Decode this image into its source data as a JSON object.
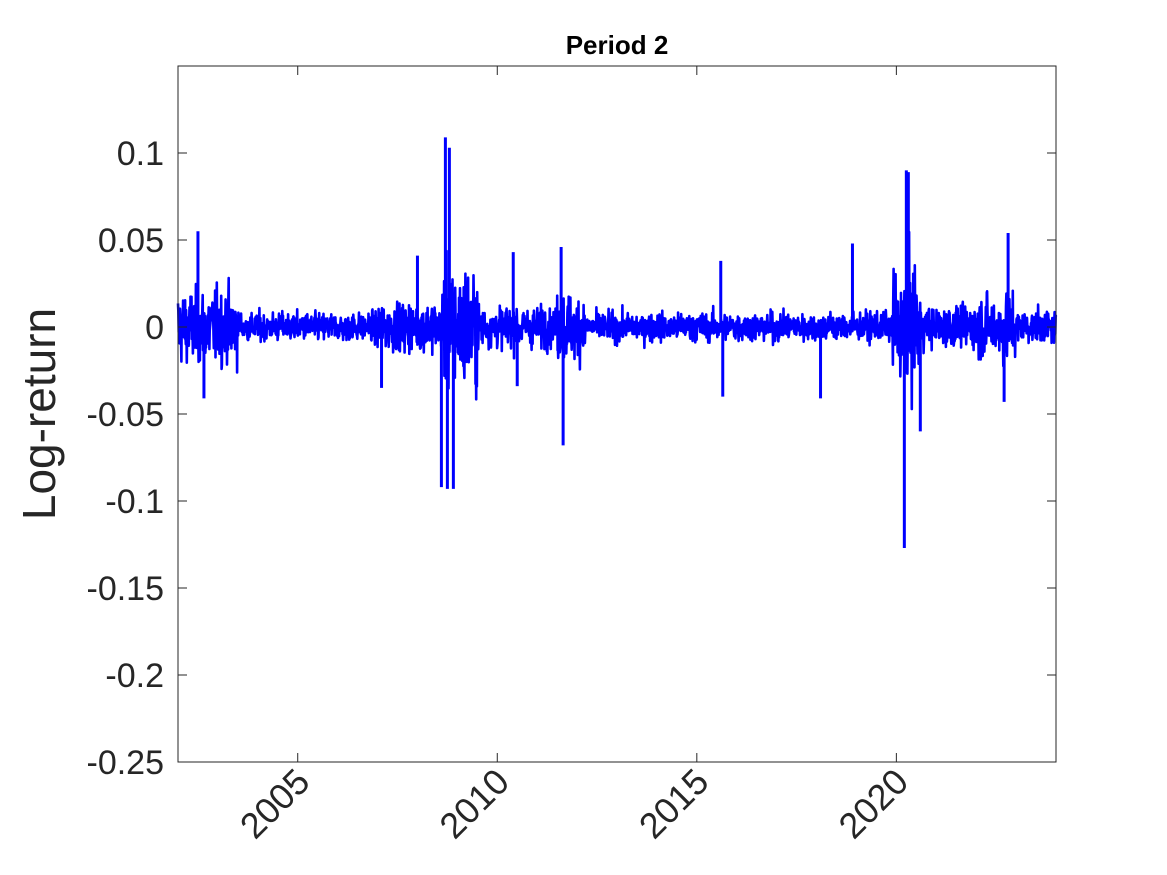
{
  "chart_data": {
    "type": "line",
    "title": "Period 2",
    "xlabel": "",
    "ylabel": "Log-return",
    "xlim": [
      2002.0,
      2024.0
    ],
    "ylim": [
      -0.25,
      0.15
    ],
    "x_ticks": [
      2005,
      2010,
      2015,
      2020
    ],
    "x_tick_labels": [
      "2005",
      "2010",
      "2015",
      "2020"
    ],
    "y_ticks": [
      -0.25,
      -0.2,
      -0.15,
      -0.1,
      -0.05,
      0,
      0.05,
      0.1
    ],
    "y_tick_labels": [
      "-0.25",
      "-0.2",
      "-0.15",
      "-0.1",
      "-0.05",
      "0",
      "0.05",
      "0.1"
    ],
    "grid": false,
    "box": true,
    "series": [
      {
        "color": "#0000ff",
        "volatility_regimes": [
          {
            "x": [
              2002.0,
              2003.5
            ],
            "level": 0.018
          },
          {
            "x": [
              2003.5,
              2007.0
            ],
            "level": 0.007
          },
          {
            "x": [
              2007.0,
              2008.6
            ],
            "level": 0.012
          },
          {
            "x": [
              2008.6,
              2009.5
            ],
            "level": 0.03
          },
          {
            "x": [
              2009.5,
              2011.5
            ],
            "level": 0.01
          },
          {
            "x": [
              2011.5,
              2012.2
            ],
            "level": 0.016
          },
          {
            "x": [
              2012.2,
              2019.9
            ],
            "level": 0.007
          },
          {
            "x": [
              2019.9,
              2020.6
            ],
            "level": 0.03
          },
          {
            "x": [
              2020.6,
              2022.0
            ],
            "level": 0.01
          },
          {
            "x": [
              2022.0,
              2023.0
            ],
            "level": 0.016
          },
          {
            "x": [
              2023.0,
              2024.0
            ],
            "level": 0.008
          }
        ],
        "spikes": [
          {
            "x": 2002.5,
            "y": 0.055
          },
          {
            "x": 2002.65,
            "y": -0.041
          },
          {
            "x": 2007.1,
            "y": -0.035
          },
          {
            "x": 2008.0,
            "y": 0.041
          },
          {
            "x": 2008.6,
            "y": -0.092
          },
          {
            "x": 2008.7,
            "y": 0.109
          },
          {
            "x": 2008.75,
            "y": -0.093
          },
          {
            "x": 2008.8,
            "y": 0.103
          },
          {
            "x": 2008.9,
            "y": -0.093
          },
          {
            "x": 2010.4,
            "y": 0.043
          },
          {
            "x": 2010.5,
            "y": -0.034
          },
          {
            "x": 2011.6,
            "y": 0.046
          },
          {
            "x": 2011.65,
            "y": -0.068
          },
          {
            "x": 2015.6,
            "y": 0.038
          },
          {
            "x": 2015.65,
            "y": -0.04
          },
          {
            "x": 2018.1,
            "y": -0.041
          },
          {
            "x": 2018.9,
            "y": 0.048
          },
          {
            "x": 2020.2,
            "y": -0.127
          },
          {
            "x": 2020.25,
            "y": 0.09
          },
          {
            "x": 2020.3,
            "y": 0.089
          },
          {
            "x": 2020.6,
            "y": -0.06
          },
          {
            "x": 2022.8,
            "y": 0.054
          },
          {
            "x": 2022.7,
            "y": -0.043
          }
        ]
      }
    ]
  }
}
